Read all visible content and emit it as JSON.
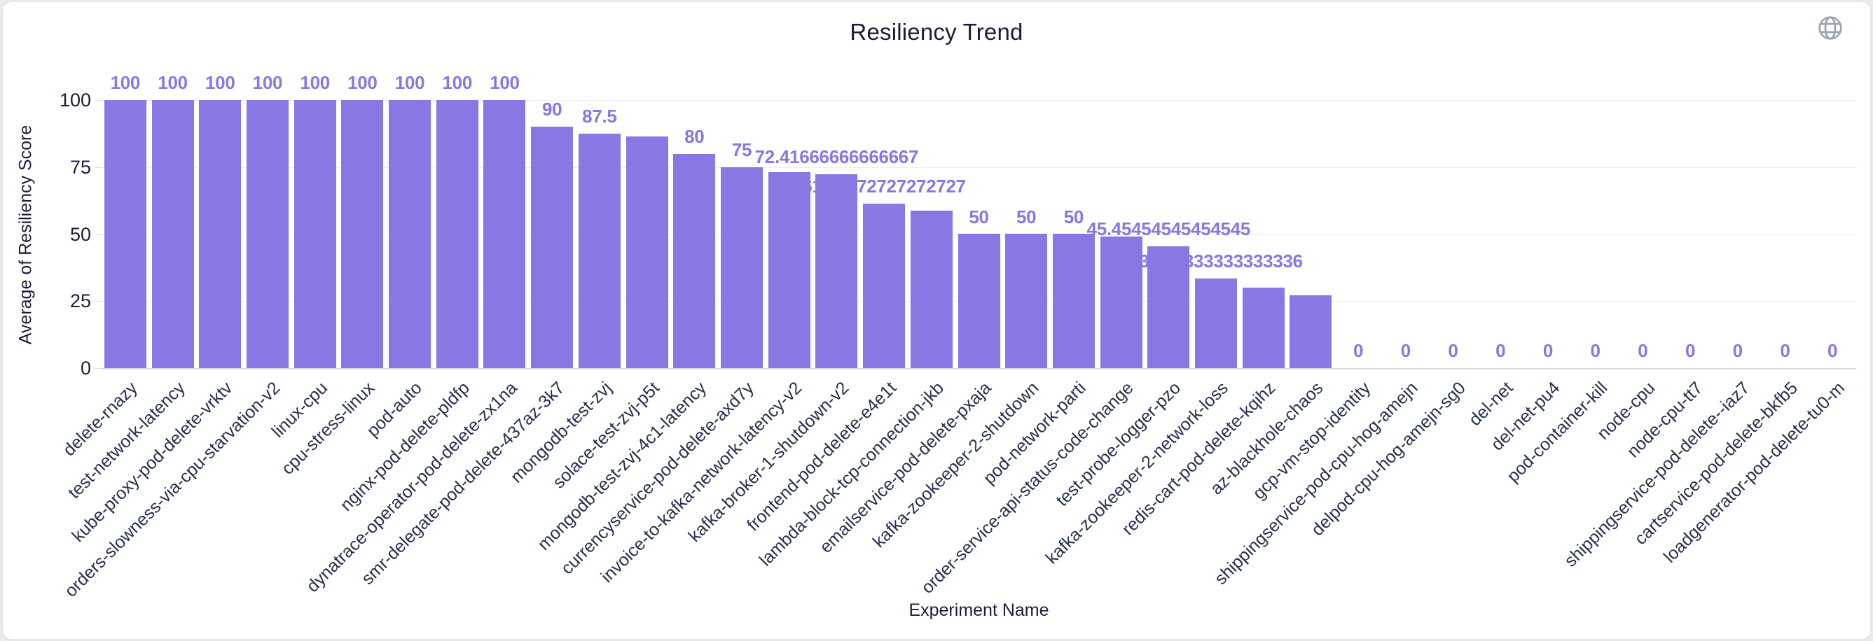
{
  "header": {
    "title": "Resiliency Trend"
  },
  "icons": {
    "top_right": "globe-icon"
  },
  "colors": {
    "bar": "#8778e4",
    "value_label": "#8778e4",
    "title_text": "#1b1b38",
    "tick_text": "#1d1d3b",
    "category_text": "#26304d",
    "gridline": "#edeef2",
    "axis_line": "#d5d9df",
    "globe_icon": "#9aa3af",
    "card_background": "#ffffff",
    "page_background": "#e9ebee"
  },
  "chart_data": {
    "type": "bar",
    "title": "Resiliency Trend",
    "xlabel": "Experiment Name",
    "ylabel": "Average of Resiliency Score",
    "ylim": [
      0,
      100
    ],
    "yticks": [
      100,
      75,
      50,
      25,
      0
    ],
    "grid": true,
    "legend": "none",
    "categories": [
      "delete-rnazy",
      "test-network-latency",
      "kube-proxy-pod-delete-vrktv",
      "orders-slowness-via-cpu-starvation-v2",
      "linux-cpu",
      "cpu-stress-linux",
      "pod-auto",
      "nginx-pod-delete-pldfp",
      "dynatrace-operator-pod-delete-zx1na",
      "smr-delegate-pod-delete-437az-3k7",
      "mongodb-test-zvj",
      "solace-test-zvj-p5t",
      "mongodb-test-zvj-4c1-latency",
      "currencyservice-pod-delete-axd7y",
      "invoice-to-kafka-network-latency-v2",
      "kafka-broker-1-shutdown-v2",
      "frontend-pod-delete-e4e1t",
      "lambda-block-tcp-connection-jkb",
      "emailservice-pod-delete-pxaja",
      "kafka-zookeeper-2-shutdown",
      "pod-network-parti",
      "order-service-api-status-code-change",
      "test-probe-logger-pzo",
      "kafka-zookeeper-2-network-loss",
      "redis-cart-pod-delete-kqihz",
      "az-blackhole-chaos",
      "gcp-vm-stop-identity",
      "shippingservice-pod-cpu-hog-amejn",
      "delpod-cpu-hog-amejn-sg0",
      "del-net",
      "del-net-pu4",
      "pod-container-kill",
      "node-cpu",
      "node-cpu-tt7",
      "shippingservice-pod-delete--iaz7",
      "cartservice-pod-delete-bkfb5",
      "loadgenerator-pod-delete-tu0-m"
    ],
    "values": [
      100,
      100,
      100,
      100,
      100,
      100,
      100,
      100,
      100,
      90,
      87.5,
      86.36363636363636,
      80,
      75,
      73.18181818181819,
      72.41666666666667,
      61.27272727272727,
      58.63636363636363,
      50,
      50,
      50,
      49.09090909090909,
      45.45454545454545,
      33.333333333333336,
      30,
      27.27272727272727,
      0,
      0,
      0,
      0,
      0,
      0,
      0,
      0,
      0,
      0,
      0
    ],
    "value_labels": [
      "100",
      "100",
      "100",
      "100",
      "100",
      "100",
      "100",
      "100",
      "100",
      "90",
      "87.5",
      "",
      "80",
      "75",
      "",
      "72.41666666666667",
      "61.27272727272727",
      "",
      "50",
      "50",
      "50",
      "",
      "45.45454545454545",
      "33.333333333333336",
      "",
      "",
      "0",
      "0",
      "0",
      "0",
      "0",
      "0",
      "0",
      "0",
      "0",
      "0",
      "0"
    ]
  }
}
